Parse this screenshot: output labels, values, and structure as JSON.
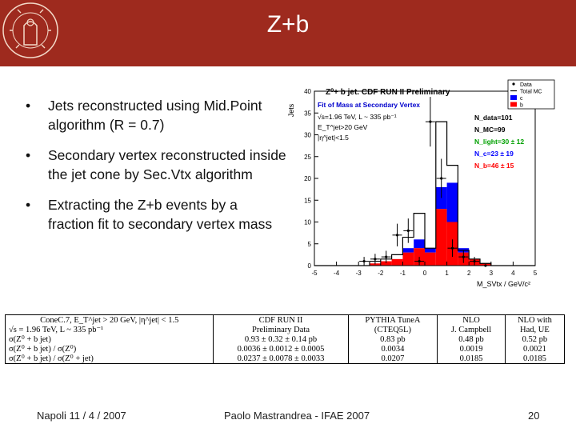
{
  "slide": {
    "title": "Z+b",
    "bullets": [
      {
        "marker": "•",
        "text": "Jets reconstructed using Mid.Point algorithm (R = 0.7)"
      },
      {
        "marker": "•",
        "text": "Secondary vertex reconstructed inside the jet cone by Sec.Vtx algorithm"
      },
      {
        "marker": "•",
        "text": "Extracting the Z+b events by a fraction fit to secondary vertex mass"
      }
    ],
    "footer": {
      "left": "Napoli 11 / 4 / 2007",
      "center": "Paolo Mastrandrea - IFAE 2007",
      "page": "20"
    }
  },
  "colors": {
    "title_bar": "#9e2a1e",
    "b_fill": "#ff0000",
    "c_fill": "#0000ff",
    "fit_line": "#000000"
  },
  "chart_data": {
    "type": "bar",
    "title": "Z⁰+ b jet. CDF RUN II Preliminary",
    "subtitle": "Fit of Mass at Secondary Vertex",
    "ylabel": "Jets",
    "xlabel": "M_SVtx / GeV/c²",
    "xlim": [
      -5,
      5
    ],
    "ylim": [
      0,
      40
    ],
    "xticks": [
      "-5",
      "-4",
      "-3",
      "-2",
      "-1",
      "0",
      "1",
      "2",
      "3",
      "4",
      "5"
    ],
    "yticks": [
      "0",
      "5",
      "10",
      "15",
      "20",
      "25",
      "30",
      "35",
      "40"
    ],
    "annotations": [
      "√s=1.96 TeV, L ~ 335 pb⁻¹",
      "E_T^jet>20 GeV",
      "|η^jet|<1.5"
    ],
    "yields": [
      {
        "label": "N_data",
        "value": "=101",
        "color": "#000000"
      },
      {
        "label": "N_MC",
        "value": "=99",
        "color": "#000000"
      },
      {
        "label": "N_light",
        "value": "=30 ± 12",
        "color": "#00a000"
      },
      {
        "label": "N_c",
        "value": "=23 ± 19",
        "color": "#0000ff"
      },
      {
        "label": "N_b",
        "value": "=46 ± 15",
        "color": "#ff0000"
      }
    ],
    "legend": [
      "Data",
      "Total MC",
      "c",
      "b"
    ],
    "legend_position": "top-right",
    "bin_edges": [
      -5,
      -4.5,
      -4,
      -3.5,
      -3,
      -2.5,
      -2,
      -1.5,
      -1,
      -0.5,
      0,
      0.5,
      1,
      1.5,
      2,
      2.5,
      3,
      3.5,
      4,
      4.5,
      5
    ],
    "series": [
      {
        "name": "b",
        "kind": "stack",
        "values": [
          0,
          0,
          0,
          0,
          0,
          0.5,
          1,
          1.5,
          3,
          4,
          3,
          13,
          10,
          3,
          1.5,
          0.5,
          0,
          0,
          0,
          0
        ]
      },
      {
        "name": "c",
        "kind": "stack",
        "values": [
          0,
          0,
          0,
          0,
          0,
          0,
          0,
          0,
          1,
          2,
          1,
          5,
          9,
          1,
          0,
          0,
          0,
          0,
          0,
          0
        ]
      },
      {
        "name": "Total MC",
        "kind": "step",
        "values": [
          0,
          0,
          0,
          0,
          0,
          1,
          1.5,
          2.5,
          6.5,
          12,
          4,
          33,
          23,
          3.5,
          1.5,
          0.5,
          0,
          0,
          0,
          0
        ]
      },
      {
        "name": "Data",
        "kind": "points",
        "x": [
          -2.75,
          -2.25,
          -1.75,
          -1.25,
          -0.75,
          -0.25,
          0.25,
          0.75,
          1.25,
          1.75,
          2.25,
          2.75
        ],
        "values": [
          1,
          1.5,
          2,
          7,
          8,
          1,
          33,
          20,
          4,
          2,
          1,
          0
        ],
        "errors": [
          1,
          1.2,
          1.4,
          2.6,
          2.8,
          1,
          5.7,
          4.5,
          2,
          1.4,
          1,
          0
        ]
      }
    ]
  },
  "table": {
    "header": [
      "ConeC.7, E_T^jet > 20 GeV, |η^jet| < 1.5",
      "CDF RUN II",
      "PYTHIA TuneA",
      "NLO",
      "NLO with"
    ],
    "rows": [
      [
        "√s = 1.96 TeV, L ~ 335 pb⁻¹",
        "Preliminary Data",
        "(CTEQ5L)",
        "J. Campbell",
        "Had, UE"
      ],
      [
        "σ(Z⁰ + b jet)",
        "0.93 ± 0.32 ± 0.14 pb",
        "0.83 pb",
        "0.48 pb",
        "0.52 pb"
      ],
      [
        "σ(Z⁰ + b jet) / σ(Z⁰)",
        "0.0036 ± 0.0012 ± 0.0005",
        "0.0034",
        "0.0019",
        "0.0021"
      ],
      [
        "σ(Z⁰ + b jet) / σ(Z⁰ + jet)",
        "0.0237 ± 0.0078 ± 0.0033",
        "0.0207",
        "0.0185",
        "0.0185"
      ]
    ]
  }
}
